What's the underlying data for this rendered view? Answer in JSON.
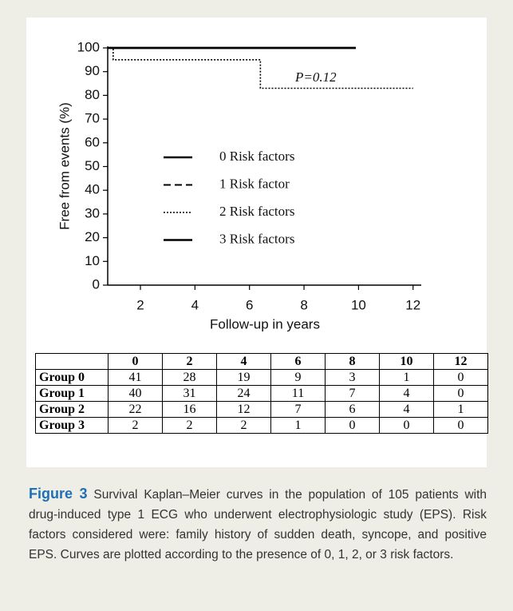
{
  "chart_data": {
    "type": "line",
    "y_label": "Free from events (%)",
    "x_label": "Follow-up in years",
    "annotation": "P=0.12",
    "xlim": [
      0.8,
      12.3
    ],
    "xticks": [
      2,
      4,
      6,
      8,
      10,
      12
    ],
    "ylim": [
      0,
      100
    ],
    "yticks": [
      0,
      10,
      20,
      30,
      40,
      50,
      60,
      70,
      80,
      90,
      100
    ],
    "series": [
      {
        "name": "0 Risk factors",
        "color": "#000000",
        "style": "solid",
        "x": [
          0.8,
          9.9
        ],
        "values": [
          100,
          100
        ]
      },
      {
        "name": "1 Risk factor",
        "color": "#000000",
        "style": "dashed",
        "x": [
          0.8,
          9.6
        ],
        "values": [
          100,
          100
        ]
      },
      {
        "name": "2 Risk factors",
        "color": "#000000",
        "style": "dotted",
        "x": [
          0.8,
          1.0,
          1.0,
          6.4,
          6.4,
          12.0
        ],
        "values": [
          100,
          100,
          95,
          95,
          83,
          83
        ]
      },
      {
        "name": "3 Risk factors",
        "color": "#000000",
        "style": "solid",
        "x": [
          0.8,
          9.9
        ],
        "values": [
          100,
          100
        ]
      }
    ]
  },
  "table": {
    "columns": [
      "0",
      "2",
      "4",
      "6",
      "8",
      "10",
      "12"
    ],
    "rows": [
      {
        "label": "Group 0",
        "cells": [
          41,
          28,
          19,
          9,
          3,
          1,
          0
        ]
      },
      {
        "label": "Group 1",
        "cells": [
          40,
          31,
          24,
          11,
          7,
          4,
          0
        ]
      },
      {
        "label": "Group 2",
        "cells": [
          22,
          16,
          12,
          7,
          6,
          4,
          1
        ]
      },
      {
        "label": "Group 3",
        "cells": [
          2,
          2,
          2,
          1,
          0,
          0,
          0
        ]
      }
    ]
  },
  "caption": {
    "label": "Figure 3",
    "text": "Survival Kaplan–Meier curves in the population of 105 patients with drug-induced type 1 ECG who underwent electrophysiologic study (EPS). Risk factors considered were: family history of sudden death, syncope, and positive EPS. Curves are plotted according to the presence of 0, 1, 2, or 3 risk factors."
  }
}
